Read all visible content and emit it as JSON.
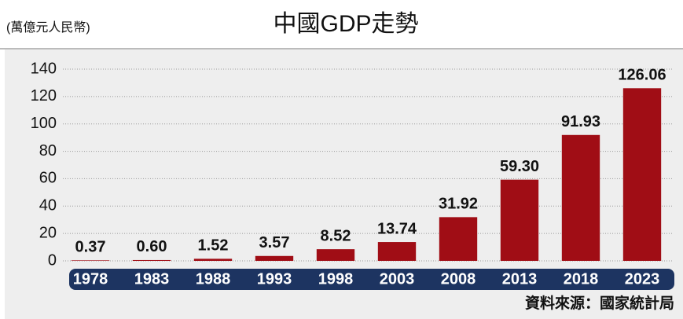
{
  "chart_data": {
    "type": "bar",
    "title": "中國GDP走勢",
    "subtitle": "(萬億元人民幣)",
    "source": "資料來源：國家統計局",
    "categories": [
      "1978",
      "1983",
      "1988",
      "1993",
      "1998",
      "2003",
      "2008",
      "2013",
      "2018",
      "2023"
    ],
    "values": [
      0.37,
      0.6,
      1.52,
      3.57,
      8.52,
      13.74,
      31.92,
      59.3,
      91.93,
      126.06
    ],
    "value_labels": [
      "0.37",
      "0.60",
      "1.52",
      "3.57",
      "8.52",
      "13.74",
      "31.92",
      "59.30",
      "91.93",
      "126.06"
    ],
    "color": "#a00d15",
    "ylim": [
      0,
      140
    ],
    "yticks": [
      0,
      20,
      40,
      60,
      80,
      100,
      120,
      140
    ],
    "grid": true
  }
}
